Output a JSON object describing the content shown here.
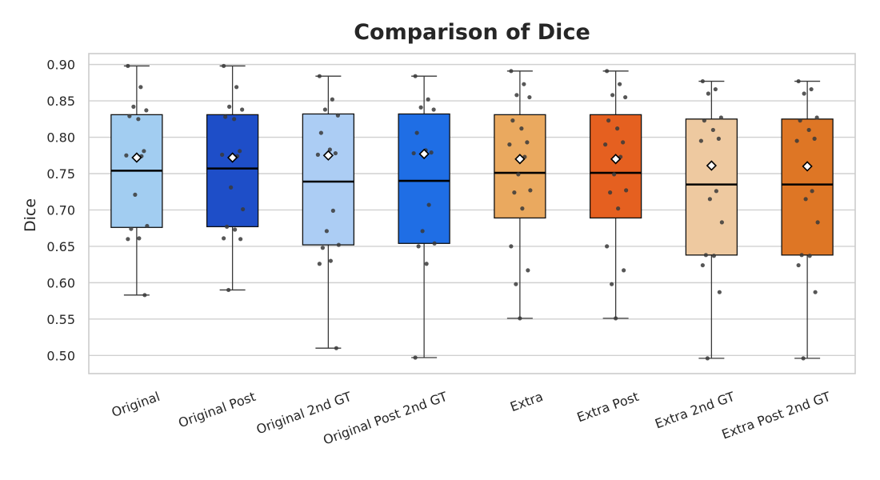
{
  "chart_data": {
    "type": "box",
    "title": "Comparison of Dice",
    "ylabel": "Dice",
    "xlabel": "",
    "ylim": [
      0.475,
      0.915
    ],
    "yticks": [
      0.5,
      0.55,
      0.6,
      0.65,
      0.7,
      0.75,
      0.8,
      0.85,
      0.9
    ],
    "ytick_labels": [
      "0.50",
      "0.55",
      "0.60",
      "0.65",
      "0.70",
      "0.75",
      "0.80",
      "0.85",
      "0.90"
    ],
    "grid": true,
    "categories": [
      "Original",
      "Original Post",
      "Original 2nd GT",
      "Original Post 2nd GT",
      "Extra",
      "Extra Post",
      "Extra 2nd GT",
      "Extra Post 2nd GT"
    ],
    "series": [
      {
        "color": "#a2cdf1",
        "whisker_low": 0.583,
        "q1": 0.676,
        "median": 0.754,
        "q3": 0.831,
        "whisker_high": 0.898,
        "mean": 0.772,
        "points": [
          0.898,
          0.869,
          0.842,
          0.837,
          0.829,
          0.825,
          0.781,
          0.775,
          0.774,
          0.721,
          0.678,
          0.674,
          0.661,
          0.66,
          0.583
        ]
      },
      {
        "color": "#1e4ec8",
        "whisker_low": 0.59,
        "q1": 0.677,
        "median": 0.757,
        "q3": 0.831,
        "whisker_high": 0.898,
        "mean": 0.772,
        "points": [
          0.898,
          0.869,
          0.842,
          0.838,
          0.828,
          0.825,
          0.781,
          0.776,
          0.774,
          0.731,
          0.701,
          0.677,
          0.673,
          0.661,
          0.66,
          0.59
        ]
      },
      {
        "color": "#accdf4",
        "whisker_low": 0.51,
        "q1": 0.652,
        "median": 0.739,
        "q3": 0.832,
        "whisker_high": 0.884,
        "mean": 0.775,
        "points": [
          0.884,
          0.852,
          0.838,
          0.83,
          0.806,
          0.783,
          0.778,
          0.776,
          0.699,
          0.671,
          0.652,
          0.648,
          0.63,
          0.626,
          0.51
        ]
      },
      {
        "color": "#1f6ee5",
        "whisker_low": 0.497,
        "q1": 0.654,
        "median": 0.74,
        "q3": 0.832,
        "whisker_high": 0.884,
        "mean": 0.777,
        "points": [
          0.884,
          0.852,
          0.841,
          0.838,
          0.806,
          0.782,
          0.779,
          0.778,
          0.707,
          0.671,
          0.654,
          0.65,
          0.626,
          0.497
        ]
      },
      {
        "color": "#eaa95f",
        "whisker_low": 0.551,
        "q1": 0.689,
        "median": 0.751,
        "q3": 0.831,
        "whisker_high": 0.891,
        "mean": 0.77,
        "points": [
          0.891,
          0.873,
          0.858,
          0.855,
          0.823,
          0.812,
          0.793,
          0.79,
          0.773,
          0.749,
          0.727,
          0.724,
          0.702,
          0.65,
          0.617,
          0.598,
          0.551
        ]
      },
      {
        "color": "#e56020",
        "whisker_low": 0.551,
        "q1": 0.689,
        "median": 0.751,
        "q3": 0.831,
        "whisker_high": 0.891,
        "mean": 0.77,
        "points": [
          0.891,
          0.873,
          0.858,
          0.855,
          0.823,
          0.812,
          0.793,
          0.79,
          0.773,
          0.749,
          0.727,
          0.724,
          0.702,
          0.65,
          0.617,
          0.598,
          0.551
        ]
      },
      {
        "color": "#eec9a0",
        "whisker_low": 0.496,
        "q1": 0.638,
        "median": 0.735,
        "q3": 0.825,
        "whisker_high": 0.877,
        "mean": 0.761,
        "points": [
          0.877,
          0.866,
          0.86,
          0.827,
          0.823,
          0.81,
          0.798,
          0.795,
          0.726,
          0.715,
          0.683,
          0.638,
          0.637,
          0.624,
          0.587,
          0.496
        ]
      },
      {
        "color": "#de7625",
        "whisker_low": 0.496,
        "q1": 0.638,
        "median": 0.735,
        "q3": 0.825,
        "whisker_high": 0.877,
        "mean": 0.76,
        "points": [
          0.877,
          0.866,
          0.86,
          0.827,
          0.823,
          0.81,
          0.798,
          0.795,
          0.726,
          0.715,
          0.683,
          0.638,
          0.637,
          0.624,
          0.587,
          0.496
        ]
      }
    ]
  }
}
